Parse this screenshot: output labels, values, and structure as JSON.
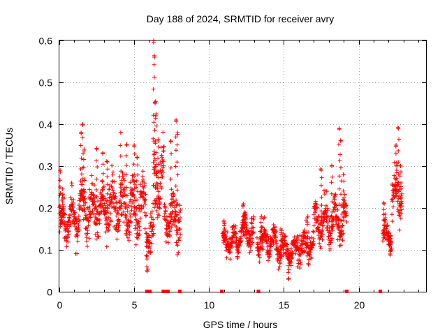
{
  "chart_data": {
    "type": "scatter",
    "title": "Day 188 of 2024, SRMTID for receiver avry",
    "xlabel": "GPS time / hours",
    "ylabel": "SRMTID / TECUs",
    "xlim": [
      0,
      24.5
    ],
    "ylim": [
      0,
      0.6
    ],
    "xticks": [
      0,
      5,
      10,
      15,
      20
    ],
    "yticks": [
      0,
      0.1,
      0.2,
      0.3,
      0.4,
      0.5,
      0.6
    ],
    "xtick_labels": [
      "0",
      "5",
      "10",
      "15",
      "20"
    ],
    "ytick_labels": [
      "0",
      "0.1",
      "0.2",
      "0.3",
      "0.4",
      "0.5",
      "0.6"
    ],
    "grid": true,
    "color": "#ff0000",
    "marker": "+",
    "series": [
      {
        "name": "SRMTID",
        "segments": [
          {
            "start": 0.0,
            "end": 1.3,
            "center": 0.17,
            "spread": 0.05,
            "peaks": [
              [
                0.05,
                0.29
              ],
              [
                0.2,
                0.23
              ]
            ]
          },
          {
            "start": 1.3,
            "end": 2.2,
            "center": 0.2,
            "spread": 0.06,
            "peaks": [
              [
                1.45,
                0.38
              ],
              [
                1.55,
                0.4
              ],
              [
                1.65,
                0.34
              ]
            ]
          },
          {
            "start": 2.2,
            "end": 3.5,
            "center": 0.2,
            "spread": 0.06,
            "peaks": [
              [
                2.5,
                0.34
              ],
              [
                2.9,
                0.33
              ],
              [
                3.2,
                0.31
              ]
            ]
          },
          {
            "start": 3.5,
            "end": 5.8,
            "center": 0.2,
            "spread": 0.07,
            "peaks": [
              [
                4.1,
                0.38
              ],
              [
                4.5,
                0.35
              ],
              [
                5.0,
                0.35
              ],
              [
                5.2,
                0.32
              ]
            ]
          },
          {
            "start": 5.8,
            "end": 6.3,
            "center": 0.13,
            "spread": 0.05,
            "peaks": [
              [
                5.85,
                0.05
              ]
            ]
          },
          {
            "start": 6.3,
            "end": 7.0,
            "center": 0.25,
            "spread": 0.09,
            "peaks": [
              [
                6.3,
                0.6
              ],
              [
                6.35,
                0.56
              ],
              [
                6.4,
                0.45
              ],
              [
                6.45,
                0.42
              ],
              [
                6.6,
                0.36
              ]
            ]
          },
          {
            "start": 7.0,
            "end": 8.1,
            "center": 0.18,
            "spread": 0.06,
            "peaks": [
              [
                7.45,
                0.36
              ],
              [
                7.8,
                0.41
              ],
              [
                7.9,
                0.38
              ]
            ]
          },
          {
            "start": 10.9,
            "end": 12.0,
            "center": 0.12,
            "spread": 0.035,
            "peaks": [
              [
                11.0,
                0.17
              ]
            ]
          },
          {
            "start": 12.0,
            "end": 13.0,
            "center": 0.14,
            "spread": 0.04,
            "peaks": [
              [
                12.3,
                0.21
              ],
              [
                12.4,
                0.19
              ]
            ]
          },
          {
            "start": 13.2,
            "end": 14.5,
            "center": 0.12,
            "spread": 0.035,
            "peaks": [
              [
                13.5,
                0.18
              ]
            ]
          },
          {
            "start": 14.5,
            "end": 15.9,
            "center": 0.1,
            "spread": 0.03,
            "peaks": [
              [
                15.3,
                0.03
              ],
              [
                14.8,
                0.15
              ]
            ]
          },
          {
            "start": 15.9,
            "end": 17.0,
            "center": 0.11,
            "spread": 0.04,
            "peaks": [
              [
                16.6,
                0.18
              ]
            ]
          },
          {
            "start": 17.0,
            "end": 19.2,
            "center": 0.17,
            "spread": 0.05,
            "peaks": [
              [
                17.5,
                0.29
              ],
              [
                18.2,
                0.3
              ],
              [
                18.7,
                0.39
              ],
              [
                18.8,
                0.36
              ],
              [
                19.0,
                0.28
              ]
            ]
          },
          {
            "start": 21.6,
            "end": 22.2,
            "center": 0.13,
            "spread": 0.035,
            "peaks": [
              [
                21.7,
                0.21
              ],
              [
                22.1,
                0.09
              ]
            ]
          },
          {
            "start": 22.2,
            "end": 22.9,
            "center": 0.23,
            "spread": 0.06,
            "peaks": [
              [
                22.5,
                0.35
              ],
              [
                22.65,
                0.39
              ],
              [
                22.8,
                0.3
              ]
            ]
          }
        ]
      }
    ],
    "gap_markers_x": [
      5.85,
      6.05,
      6.95,
      7.15,
      7.25,
      8.05,
      10.85,
      13.3,
      19.2,
      21.45
    ]
  }
}
